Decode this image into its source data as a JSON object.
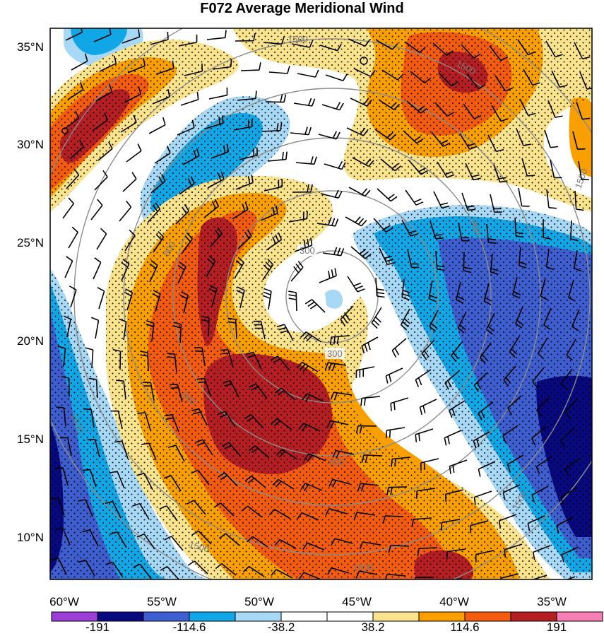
{
  "title": "F072 Average Meridional Wind",
  "map": {
    "lat_labels": [
      "35°N",
      "30°N",
      "25°N",
      "20°N",
      "15°N",
      "10°N"
    ],
    "lon_labels": [
      "60°W",
      "55°W",
      "50°W",
      "45°W",
      "40°W",
      "35°W"
    ],
    "lat_range": [
      8,
      36
    ],
    "lon_range": [
      -61,
      -32
    ],
    "range_ring_labels": [
      "300",
      "300",
      "900",
      "900",
      "900",
      "900",
      "1500",
      "1500",
      "1500",
      "1500",
      "1500",
      "1500",
      "1500"
    ],
    "stippling": "dotted significance overlay"
  },
  "colorbar": {
    "labels": [
      "-191",
      "-114.6",
      "-38.2",
      "38.2",
      "114.6",
      "191"
    ],
    "colors": [
      "#9c3fd6",
      "#08087f",
      "#3f5fd1",
      "#11a7e6",
      "#a7d8f5",
      "#ffffff",
      "#ffffff",
      "#f9e38c",
      "#f9a000",
      "#f35b0f",
      "#b51e22",
      "#f77fb4"
    ]
  },
  "palette": {
    "neg_strong": "#3e5ecf",
    "neg_xstrong": "#08087f",
    "neg_mid": "#11a7e6",
    "neg_weak": "#a7d8f5",
    "pos_weak": "#f9e38c",
    "pos_mid": "#f9a000",
    "pos_strong": "#f35b0f",
    "pos_xstrong": "#b51e22"
  }
}
